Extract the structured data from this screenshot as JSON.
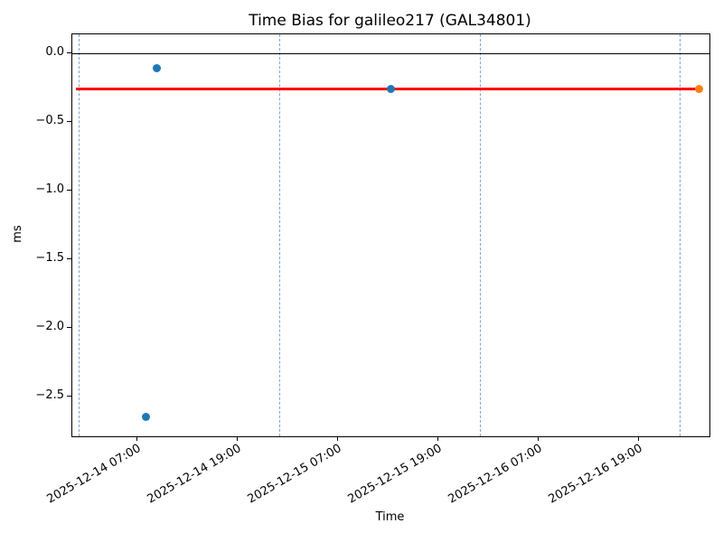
{
  "figure": {
    "background": "#ffffff"
  },
  "chart_data": {
    "type": "scatter",
    "title": "Time Bias for galileo217 (GAL34801)",
    "xlabel": "Time",
    "ylabel": "ms",
    "x_epoch": "2025-12-14 00:00",
    "xlim_hours": [
      -0.76,
      75.46
    ],
    "ylim": [
      -2.79,
      0.14
    ],
    "grid": {
      "style": "dashed",
      "color": "#7fa8cc",
      "hours": [
        0,
        24,
        48,
        72
      ],
      "dates": [
        "2025-12-14 00:00",
        "2025-12-15 00:00",
        "2025-12-16 00:00",
        "2025-12-17 00:00"
      ]
    },
    "x_ticks": [
      {
        "hour": 7,
        "label": "2025-12-14 07:00"
      },
      {
        "hour": 19,
        "label": "2025-12-14 19:00"
      },
      {
        "hour": 31,
        "label": "2025-12-15 07:00"
      },
      {
        "hour": 43,
        "label": "2025-12-15 19:00"
      },
      {
        "hour": 55,
        "label": "2025-12-16 07:00"
      },
      {
        "hour": 67,
        "label": "2025-12-16 19:00"
      }
    ],
    "y_ticks": [
      {
        "value": 0.0,
        "label": "0.0"
      },
      {
        "value": -0.5,
        "label": "−0.5"
      },
      {
        "value": -1.0,
        "label": "−1.0"
      },
      {
        "value": -1.5,
        "label": "−1.5"
      },
      {
        "value": -2.0,
        "label": "−2.0"
      },
      {
        "value": -2.5,
        "label": "−2.5"
      }
    ],
    "series": [
      {
        "name": "bias-measurement",
        "color": "#1f77b4",
        "marker": "circle",
        "points": [
          {
            "time": "2025-12-14 08:00",
            "hour": 8.0,
            "value": -2.65
          },
          {
            "time": "2025-12-14 09:25",
            "hour": 9.4,
            "value": -0.11
          },
          {
            "time": "2025-12-15 13:20",
            "hour": 37.3,
            "value": -0.26
          }
        ]
      },
      {
        "name": "latest-measurement",
        "color": "#ff7f0e",
        "marker": "circle",
        "points": [
          {
            "time": "2025-12-17 02:10",
            "hour": 74.2,
            "value": -0.26
          }
        ]
      }
    ],
    "lines": [
      {
        "name": "zero-line",
        "value": 0.0,
        "color": "#000000",
        "thickness": 1.5,
        "from_hour": null,
        "to_hour": null,
        "style": "solid"
      },
      {
        "name": "fit-line",
        "value": -0.26,
        "color": "#ff0000",
        "thickness": 3,
        "from_hour": -0.32,
        "to_hour": 74.2,
        "style": "solid"
      }
    ]
  }
}
